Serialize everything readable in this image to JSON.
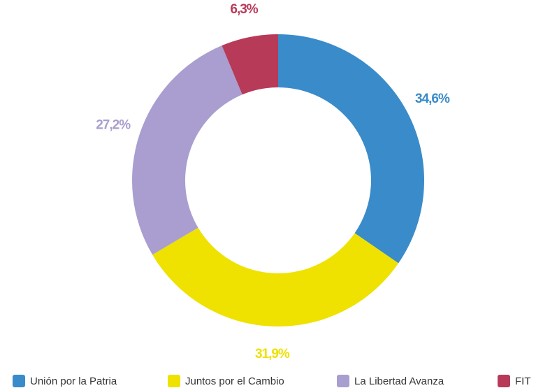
{
  "chart_data": {
    "type": "donut",
    "categories": [
      "Unión por la Patria",
      "Juntos por el Cambio",
      "La Libertad Avanza",
      "FIT"
    ],
    "values": [
      34.6,
      31.9,
      27.2,
      6.3
    ],
    "value_labels": [
      "34,6%",
      "31,9%",
      "27,2%",
      "6,3%"
    ],
    "colors": [
      "#3a8bc9",
      "#efe100",
      "#a99ecf",
      "#b73a58"
    ],
    "legend": "bottom"
  }
}
